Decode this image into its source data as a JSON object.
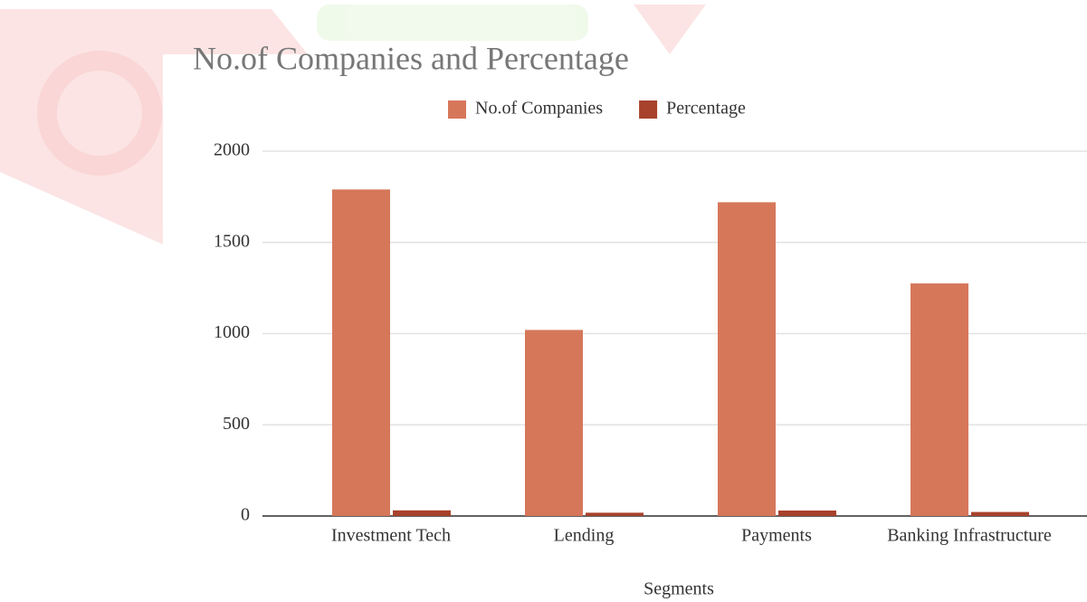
{
  "chart_data": {
    "type": "bar",
    "title": "No.of Companies and Percentage",
    "categories": [
      "Investment Tech",
      "Lending",
      "Payments",
      "Banking Infrastructure"
    ],
    "series": [
      {
        "name": "No.of Companies",
        "color": "#d6775a",
        "values": [
          1790,
          1020,
          1720,
          1275
        ]
      },
      {
        "name": "Percentage",
        "color": "#a8422c",
        "values": [
          31,
          18,
          30,
          22
        ]
      }
    ],
    "xlabel": "Segments",
    "ylim": [
      0,
      2000
    ],
    "yticks": [
      0,
      500,
      1000,
      1500,
      2000
    ],
    "grid": true,
    "legend": "top"
  }
}
